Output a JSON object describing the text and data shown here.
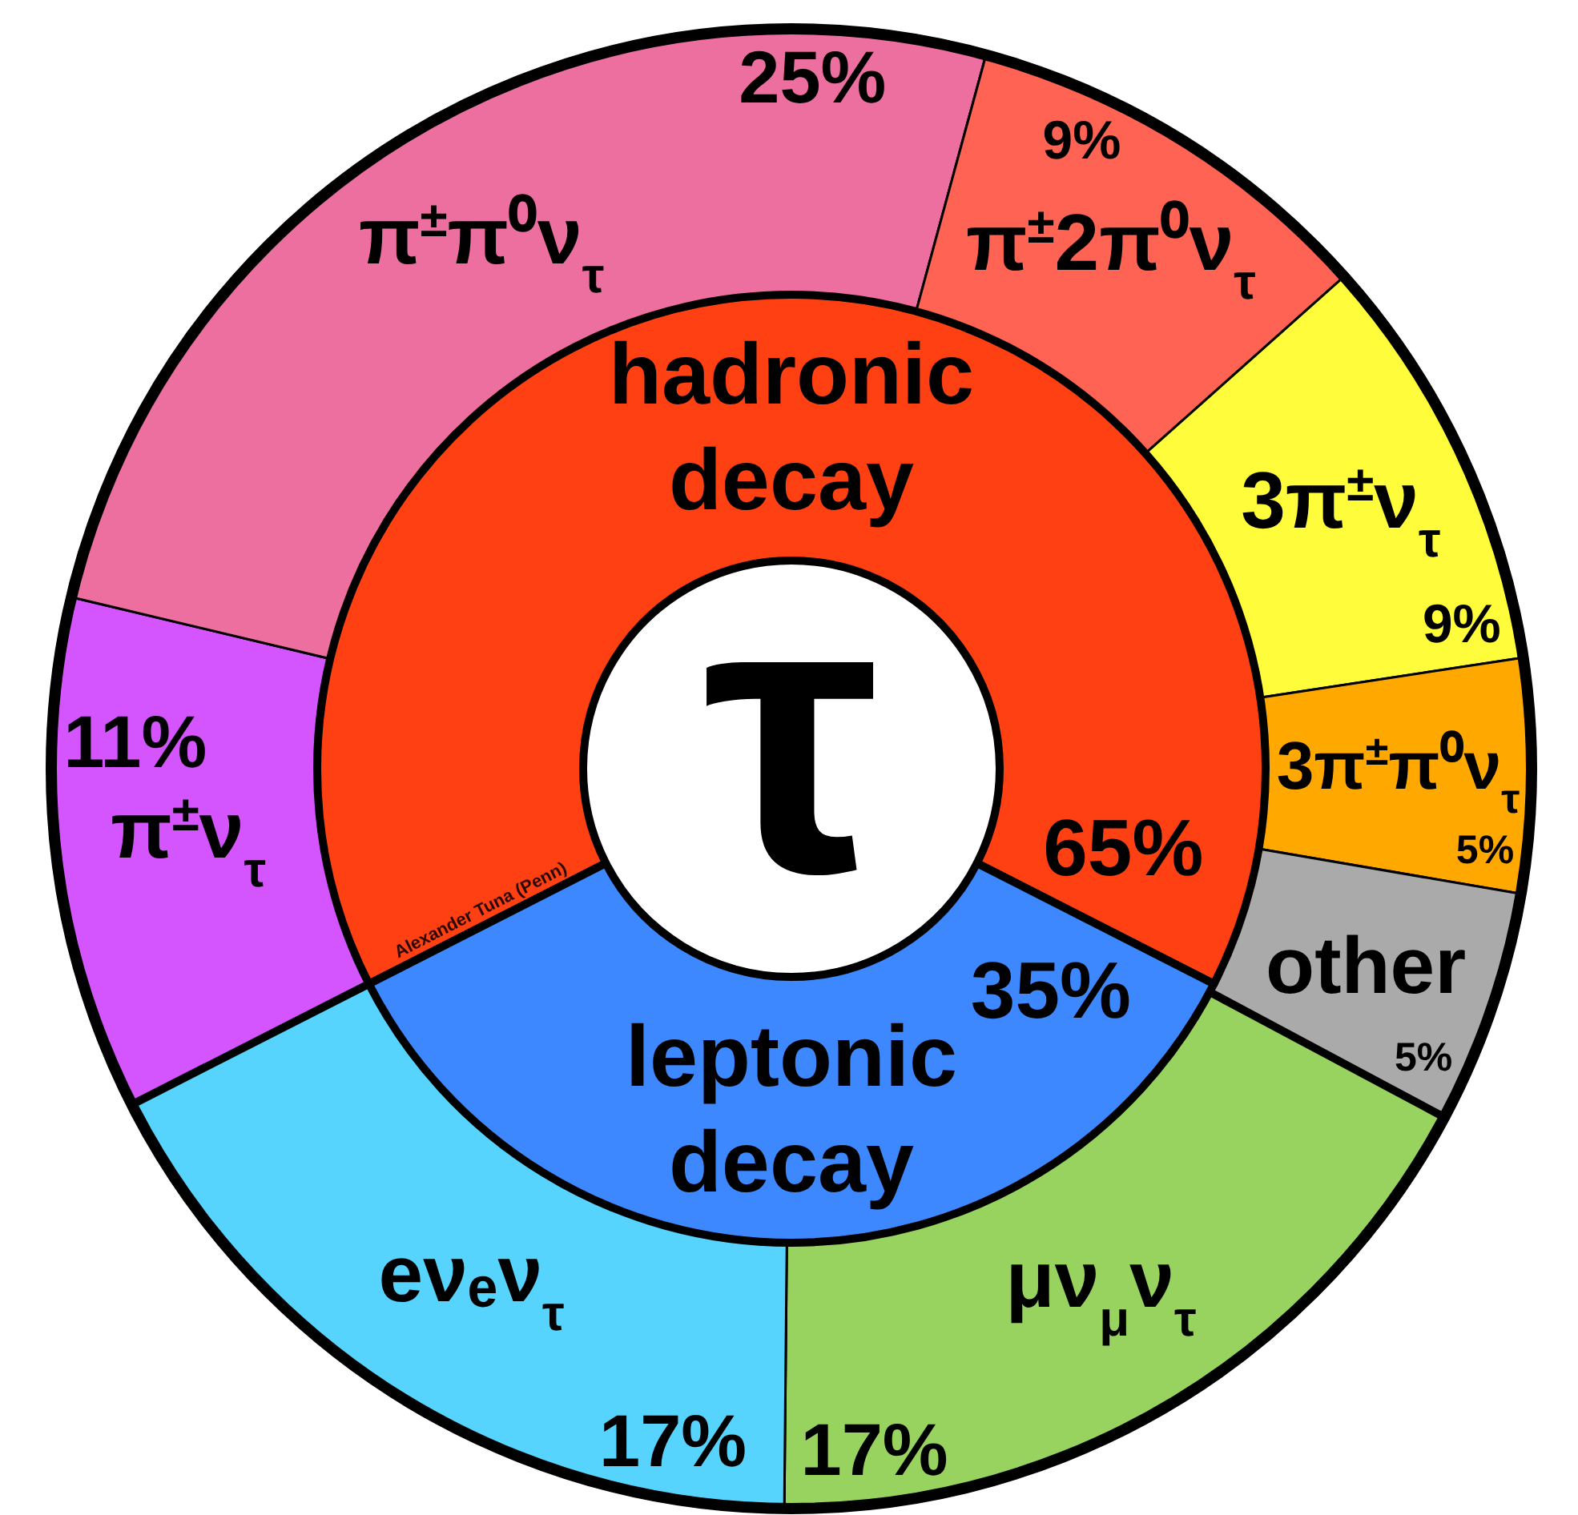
{
  "chart_data": [
    {
      "type": "donut",
      "title": "τ",
      "categories": [
        "hadronic decay",
        "leptonic decay"
      ],
      "values": [
        65,
        35
      ],
      "colors": [
        "#ff4013",
        "#3d88fe"
      ],
      "value_labels": [
        "65%",
        "35%"
      ],
      "annotations": [
        "Alexander Tuna (Penn)"
      ]
    },
    {
      "type": "donut",
      "categories": [
        "π$^{±}$ν$_{τ}$",
        "π$^{±}$π⁰ν$_{τ}$",
        "π$^{±}$2π⁰ν$_{τ}$",
        "3π$^{±}$ν$_{τ}$",
        "3π$^{±}$π⁰ν$_{τ}$",
        "other",
        "μν$_{μ}$ν$_{τ}$",
        "eνₑν$_{τ}$"
      ],
      "values": [
        11,
        25,
        9,
        9,
        5,
        5,
        17,
        17
      ],
      "colors": [
        "#d455fe",
        "#ec6f9f",
        "#ff6353",
        "#fffc3b",
        "#ffa800",
        "#aaaaaa",
        "#98d360",
        "#56d4fd"
      ],
      "value_labels": [
        "11%",
        "25%",
        "9%",
        "9%",
        "5%",
        "5%",
        "17%",
        "17%"
      ]
    }
  ]
}
